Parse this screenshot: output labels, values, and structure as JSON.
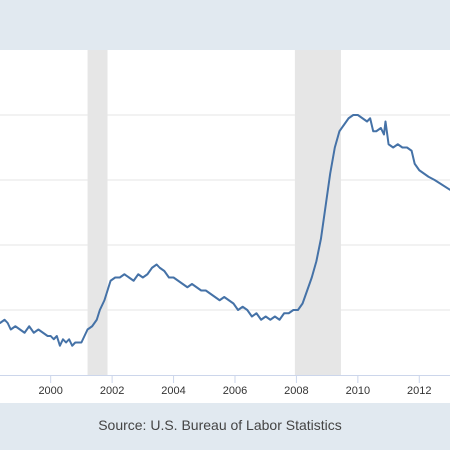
{
  "source": "Source: U.S. Bureau of Labor Statistics",
  "chart_data": {
    "type": "line",
    "xlim": [
      1998.35,
      2013.0
    ],
    "ylim": [
      2.0,
      12.0
    ],
    "y_gridlines": [
      2,
      4,
      6,
      8,
      10,
      12
    ],
    "x_ticks": [
      {
        "value": 2000,
        "label": "2000"
      },
      {
        "value": 2002,
        "label": "2002"
      },
      {
        "value": 2004,
        "label": "2004"
      },
      {
        "value": 2006,
        "label": "2006"
      },
      {
        "value": 2008,
        "label": "2008"
      },
      {
        "value": 2010,
        "label": "2010"
      },
      {
        "value": 2012,
        "label": "2012"
      }
    ],
    "recessions": [
      [
        2001.2,
        2001.85
      ],
      [
        2007.95,
        2009.45
      ]
    ],
    "colors": {
      "line": "#4572a7",
      "recession": "#e6e6e6",
      "grid": "#e6e6e6",
      "axis": "#ccd6eb"
    },
    "series": [
      {
        "values": [
          [
            1998.35,
            3.6
          ],
          [
            1998.5,
            3.7
          ],
          [
            1998.6,
            3.6
          ],
          [
            1998.7,
            3.4
          ],
          [
            1998.85,
            3.5
          ],
          [
            1999.0,
            3.4
          ],
          [
            1999.15,
            3.3
          ],
          [
            1999.3,
            3.5
          ],
          [
            1999.45,
            3.3
          ],
          [
            1999.6,
            3.4
          ],
          [
            1999.75,
            3.3
          ],
          [
            1999.9,
            3.2
          ],
          [
            2000.0,
            3.2
          ],
          [
            2000.1,
            3.1
          ],
          [
            2000.2,
            3.2
          ],
          [
            2000.3,
            2.9
          ],
          [
            2000.4,
            3.1
          ],
          [
            2000.5,
            3.0
          ],
          [
            2000.6,
            3.1
          ],
          [
            2000.7,
            2.9
          ],
          [
            2000.8,
            3.0
          ],
          [
            2000.9,
            3.0
          ],
          [
            2001.0,
            3.0
          ],
          [
            2001.1,
            3.2
          ],
          [
            2001.2,
            3.4
          ],
          [
            2001.35,
            3.5
          ],
          [
            2001.5,
            3.7
          ],
          [
            2001.6,
            4.0
          ],
          [
            2001.75,
            4.3
          ],
          [
            2001.85,
            4.6
          ],
          [
            2001.95,
            4.9
          ],
          [
            2002.1,
            5.0
          ],
          [
            2002.25,
            5.0
          ],
          [
            2002.4,
            5.1
          ],
          [
            2002.55,
            5.0
          ],
          [
            2002.7,
            4.9
          ],
          [
            2002.85,
            5.1
          ],
          [
            2003.0,
            5.0
          ],
          [
            2003.15,
            5.1
          ],
          [
            2003.3,
            5.3
          ],
          [
            2003.45,
            5.4
          ],
          [
            2003.55,
            5.3
          ],
          [
            2003.7,
            5.2
          ],
          [
            2003.85,
            5.0
          ],
          [
            2004.0,
            5.0
          ],
          [
            2004.15,
            4.9
          ],
          [
            2004.3,
            4.8
          ],
          [
            2004.45,
            4.7
          ],
          [
            2004.6,
            4.8
          ],
          [
            2004.75,
            4.7
          ],
          [
            2004.9,
            4.6
          ],
          [
            2005.05,
            4.6
          ],
          [
            2005.2,
            4.5
          ],
          [
            2005.35,
            4.4
          ],
          [
            2005.5,
            4.3
          ],
          [
            2005.65,
            4.4
          ],
          [
            2005.8,
            4.3
          ],
          [
            2005.95,
            4.2
          ],
          [
            2006.1,
            4.0
          ],
          [
            2006.25,
            4.1
          ],
          [
            2006.4,
            4.0
          ],
          [
            2006.55,
            3.8
          ],
          [
            2006.7,
            3.9
          ],
          [
            2006.85,
            3.7
          ],
          [
            2007.0,
            3.8
          ],
          [
            2007.15,
            3.7
          ],
          [
            2007.3,
            3.8
          ],
          [
            2007.45,
            3.7
          ],
          [
            2007.6,
            3.9
          ],
          [
            2007.75,
            3.9
          ],
          [
            2007.9,
            4.0
          ],
          [
            2008.05,
            4.0
          ],
          [
            2008.2,
            4.2
          ],
          [
            2008.35,
            4.6
          ],
          [
            2008.5,
            5.0
          ],
          [
            2008.65,
            5.5
          ],
          [
            2008.8,
            6.2
          ],
          [
            2008.95,
            7.2
          ],
          [
            2009.1,
            8.2
          ],
          [
            2009.25,
            9.0
          ],
          [
            2009.4,
            9.5
          ],
          [
            2009.55,
            9.7
          ],
          [
            2009.7,
            9.9
          ],
          [
            2009.85,
            10.0
          ],
          [
            2010.0,
            10.0
          ],
          [
            2010.15,
            9.9
          ],
          [
            2010.3,
            9.8
          ],
          [
            2010.4,
            9.9
          ],
          [
            2010.5,
            9.5
          ],
          [
            2010.6,
            9.5
          ],
          [
            2010.75,
            9.6
          ],
          [
            2010.85,
            9.4
          ],
          [
            2010.9,
            9.8
          ],
          [
            2011.0,
            9.1
          ],
          [
            2011.15,
            9.0
          ],
          [
            2011.3,
            9.1
          ],
          [
            2011.45,
            9.0
          ],
          [
            2011.6,
            9.0
          ],
          [
            2011.75,
            8.9
          ],
          [
            2011.85,
            8.5
          ],
          [
            2012.0,
            8.3
          ],
          [
            2012.15,
            8.2
          ],
          [
            2012.3,
            8.1
          ],
          [
            2012.5,
            8.0
          ],
          [
            2013.0,
            7.7
          ]
        ]
      }
    ]
  }
}
